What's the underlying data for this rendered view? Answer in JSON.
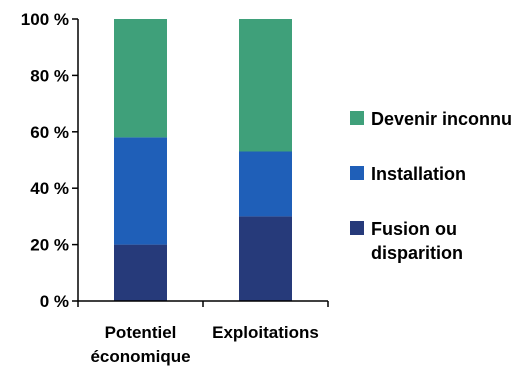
{
  "chart_data": {
    "type": "bar",
    "stacked": true,
    "categories": [
      [
        "Potentiel",
        "économique"
      ],
      [
        "Exploitations"
      ]
    ],
    "series": [
      {
        "name": "Fusion ou disparition",
        "label_lines": [
          "Fusion ou",
          "disparition"
        ],
        "color": "#263a7a",
        "values": [
          20,
          30
        ]
      },
      {
        "name": "Installation",
        "label_lines": [
          "Installation"
        ],
        "color": "#1f5fb8",
        "values": [
          38,
          23
        ]
      },
      {
        "name": "Devenir inconnu",
        "label_lines": [
          "Devenir inconnu"
        ],
        "color": "#3fa07a",
        "values": [
          42,
          47
        ]
      }
    ],
    "yticks": [
      "0 %",
      "20 %",
      "40 %",
      "60 %",
      "80 %",
      "100 %"
    ],
    "ylim": [
      0,
      100
    ],
    "grid": false,
    "legend": "right"
  }
}
